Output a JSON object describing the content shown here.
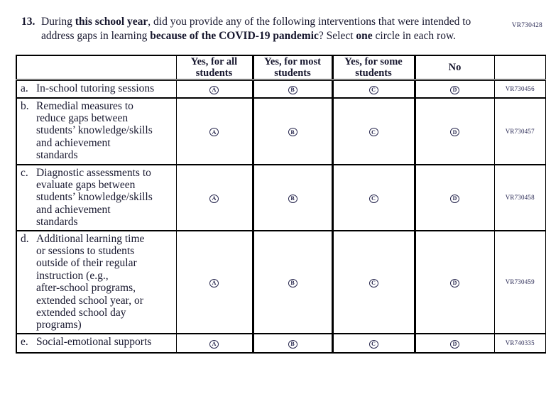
{
  "page": {
    "top_right_code": "VR730428"
  },
  "question": {
    "number": "13.",
    "parts": {
      "p1": "During ",
      "b1": "this school year",
      "p2": ", did you provide any of the following interventions that were intended to address gaps in learning ",
      "b2": "because of the COVID-19 pandemic",
      "p3": "? Select ",
      "b3": "one",
      "p4": " circle in each row."
    }
  },
  "table": {
    "headers": [
      "",
      "Yes, for all\nstudents",
      "Yes, for most\nstudents",
      "Yes, for some\nstudents",
      "No",
      ""
    ],
    "options": [
      "A",
      "B",
      "C",
      "D"
    ],
    "rows": [
      {
        "prefix": "a.",
        "label": "In-school tutoring sessions",
        "code": "VR730456"
      },
      {
        "prefix": "b.",
        "label": "Remedial measures to\nreduce gaps between\nstudents’ knowledge/skills\nand achievement\nstandards",
        "code": "VR730457"
      },
      {
        "prefix": "c.",
        "label": "Diagnostic assessments to\nevaluate gaps between\nstudents’ knowledge/skills\nand achievement\nstandards",
        "code": "VR730458"
      },
      {
        "prefix": "d.",
        "label": "Additional learning time\nor sessions to students\noutside of their regular\ninstruction (e.g.,\nafter-school programs,\nextended school year, or\nextended school day\nprograms)",
        "code": "VR730459"
      },
      {
        "prefix": "e.",
        "label": "Social-emotional supports",
        "code": "VR740335"
      }
    ]
  }
}
